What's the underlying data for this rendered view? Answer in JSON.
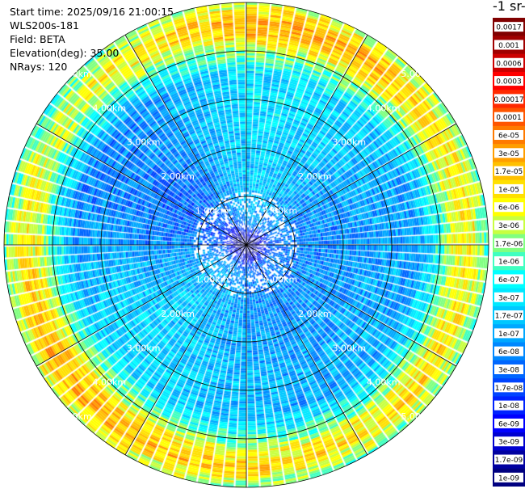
{
  "info": {
    "start_time": "Start time: 2025/09/16 21:00:15",
    "instrument": "WLS200s-181",
    "field": "Field: BETA",
    "elevation": "Elevation(deg): 35.00",
    "nrays": "NRays: 120"
  },
  "unit_label": "-1 sr-",
  "chart_data": {
    "type": "heatmap",
    "projection": "polar-ppi",
    "field": "BETA",
    "elevation_deg": 35.0,
    "n_rays": 120,
    "max_range_km": 5.0,
    "range_rings_km": [
      1,
      2,
      3,
      4,
      5
    ],
    "range_ring_labels": [
      "1.00km",
      "2.00km",
      "3.00km",
      "4.00km",
      "5.00km"
    ],
    "radial_spokes_deg": [
      0,
      30,
      60,
      90,
      120,
      150,
      180,
      210,
      240,
      270,
      300,
      330
    ],
    "grid": true,
    "colorbar": {
      "position": "right",
      "tick_labels": [
        "0.0017",
        "0.001",
        "0.0006",
        "0.0003",
        "0.00017",
        "0.0001",
        "6e-05",
        "3e-05",
        "1.7e-05",
        "1e-05",
        "6e-06",
        "3e-06",
        "1.7e-06",
        "1e-06",
        "6e-07",
        "3e-07",
        "1.7e-07",
        "1e-07",
        "6e-08",
        "3e-08",
        "1.7e-08",
        "1e-08",
        "6e-09",
        "3e-09",
        "1.7e-09",
        "1e-09"
      ],
      "colors": [
        "#800000",
        "#a00000",
        "#cc0000",
        "#ff0000",
        "#ff2a00",
        "#ff5500",
        "#ff7a00",
        "#ff9e00",
        "#ffc000",
        "#ffe000",
        "#ffff00",
        "#c8ff40",
        "#80ff80",
        "#40ffc0",
        "#00ffff",
        "#00e8ff",
        "#00c8ff",
        "#00a8ff",
        "#0088ff",
        "#0066ff",
        "#0044ff",
        "#0022ff",
        "#0000ff",
        "#0000d0",
        "#0000a0",
        "#000080"
      ]
    },
    "radial_profile": [
      {
        "range_km": 0.1,
        "beta": 1e-09
      },
      {
        "range_km": 0.5,
        "beta": 5e-08
      },
      {
        "range_km": 1.0,
        "beta": 8e-08
      },
      {
        "range_km": 2.0,
        "beta": 1e-07
      },
      {
        "range_km": 3.0,
        "beta": 1.5e-07
      },
      {
        "range_km": 3.5,
        "beta": 1.2e-07
      },
      {
        "range_km": 4.0,
        "beta": 1e-06
      },
      {
        "range_km": 4.3,
        "beta": 6e-06
      },
      {
        "range_km": 4.6,
        "beta": 1.2e-05
      },
      {
        "range_km": 5.0,
        "beta": 1.5e-06
      }
    ]
  }
}
